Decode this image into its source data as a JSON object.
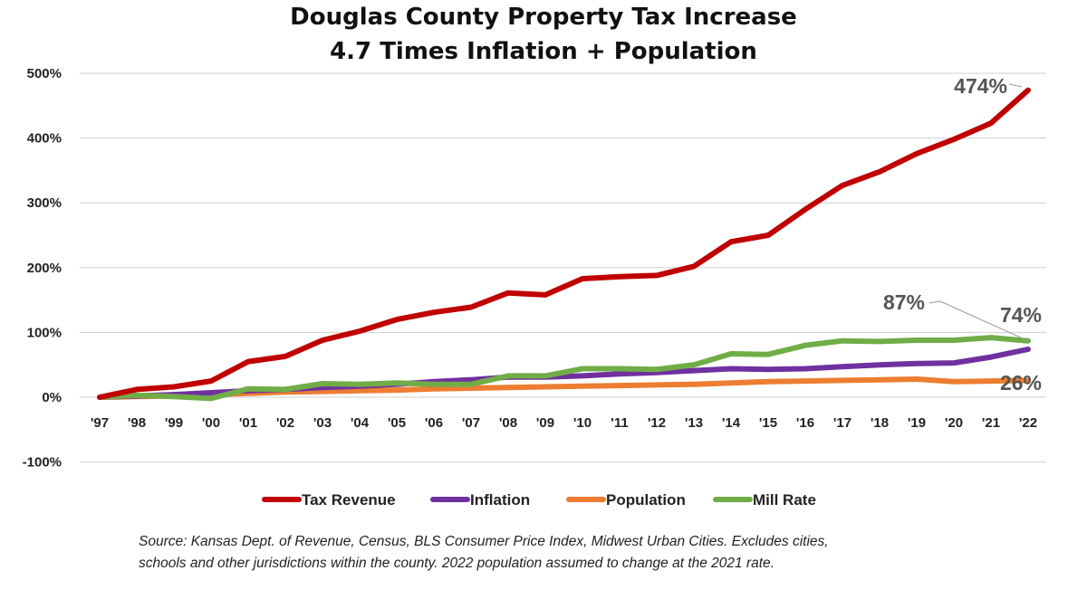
{
  "title_line1": "Douglas County Property Tax Increase",
  "title_line2": "4.7 Times Inflation + Population",
  "source_line1": "Source: Kansas Dept. of Revenue, Census, BLS Consumer Price Index, Midwest Urban Cities.  Excludes cities,",
  "source_line2": "schools and other jurisdictions within the county.  2022 population assumed to change at the 2021 rate.",
  "chart_data": {
    "type": "line",
    "x": [
      "'97",
      "'98",
      "'99",
      "'00",
      "'01",
      "'02",
      "'03",
      "'04",
      "'05",
      "'06",
      "'07",
      "'08",
      "'09",
      "'10",
      "'11",
      "'12",
      "'13",
      "'14",
      "'15",
      "'16",
      "'17",
      "'18",
      "'19",
      "'20",
      "'21",
      "'22"
    ],
    "ylim": [
      -100,
      500
    ],
    "yticks": [
      "500%",
      "400%",
      "300%",
      "200%",
      "100%",
      "0%",
      "-100%"
    ],
    "ytick_values": [
      500,
      400,
      300,
      200,
      100,
      0,
      -100
    ],
    "grid": true,
    "legend_position": "bottom",
    "series": [
      {
        "name": "Tax Revenue",
        "color": "#C00000",
        "values": [
          0,
          12,
          16,
          25,
          55,
          63,
          88,
          102,
          120,
          131,
          139,
          161,
          158,
          183,
          186,
          188,
          202,
          240,
          250,
          290,
          327,
          348,
          376,
          398,
          423,
          474
        ]
      },
      {
        "name": "Inflation",
        "color": "#7030A0",
        "values": [
          0,
          2,
          4,
          7,
          10,
          12,
          15,
          17,
          20,
          24,
          27,
          31,
          31,
          33,
          36,
          38,
          41,
          44,
          43,
          44,
          47,
          50,
          52,
          53,
          62,
          74
        ]
      },
      {
        "name": "Population",
        "color": "#ED7D31",
        "values": [
          0,
          1,
          2,
          4,
          6,
          8,
          9,
          10,
          11,
          13,
          14,
          15,
          16,
          17,
          18,
          19,
          20,
          22,
          24,
          25,
          26,
          27,
          28,
          24,
          25,
          26
        ]
      },
      {
        "name": "Mill Rate",
        "color": "#70AD47",
        "values": [
          0,
          3,
          1,
          -2,
          13,
          12,
          21,
          20,
          22,
          20,
          20,
          33,
          33,
          44,
          44,
          43,
          50,
          67,
          66,
          80,
          87,
          86,
          88,
          88,
          92,
          87
        ]
      }
    ],
    "annotations": [
      {
        "text": "474%",
        "series": "Tax Revenue"
      },
      {
        "text": "87%",
        "series": "Mill Rate"
      },
      {
        "text": "74%",
        "series": "Inflation"
      },
      {
        "text": "26%",
        "series": "Population"
      }
    ]
  }
}
